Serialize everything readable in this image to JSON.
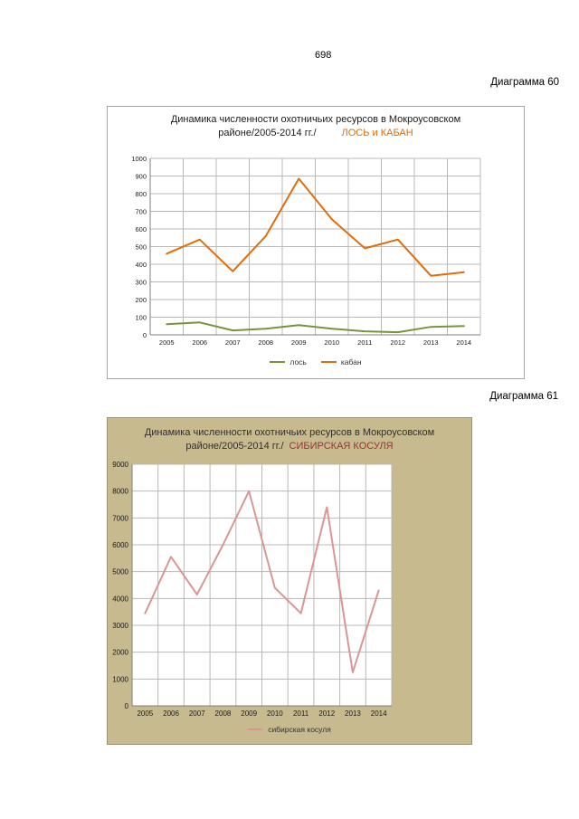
{
  "page": {
    "number": "698"
  },
  "captions": {
    "diagram60": "Диаграмма 60",
    "diagram61": "Диаграмма 61"
  },
  "chart_data": [
    {
      "type": "line",
      "title_main": "Динамика численности охотничьих ресурсов в Мокроусовском районе/2005-2014 гг./",
      "title_accent": "ЛОСЬ и КАБАН",
      "accent_color": "#e36c09",
      "categories": [
        "2005",
        "2006",
        "2007",
        "2008",
        "2009",
        "2010",
        "2011",
        "2012",
        "2013",
        "2014"
      ],
      "series": [
        {
          "name": "лось",
          "color": "#77933c",
          "values": [
            60,
            70,
            25,
            35,
            55,
            35,
            20,
            15,
            45,
            50
          ]
        },
        {
          "name": "кабан",
          "color": "#e36c09",
          "values": [
            460,
            540,
            360,
            560,
            885,
            655,
            490,
            540,
            335,
            355
          ]
        }
      ],
      "ylim": [
        0,
        1000
      ],
      "ystep": 100,
      "grid": true,
      "legend_position": "bottom",
      "background": "#ffffff",
      "plot_background": "#ffffff"
    },
    {
      "type": "line",
      "title_main": "Динамика численности  охотничьих ресурсов  в  Мокроусовском районе/2005-2014  гг./",
      "title_accent": "СИБИРСКАЯ КОСУЛЯ",
      "accent_color": "#963634",
      "categories": [
        "2005",
        "2006",
        "2007",
        "2008",
        "2009",
        "2010",
        "2011",
        "2012",
        "2013",
        "2014"
      ],
      "series": [
        {
          "name": "сибирская косуля",
          "color": "#d99694",
          "values": [
            3450,
            5550,
            4150,
            6000,
            8000,
            4400,
            3450,
            7400,
            1250,
            4300
          ]
        }
      ],
      "ylim": [
        0,
        9000
      ],
      "ystep": 1000,
      "grid": true,
      "legend_position": "bottom",
      "background": "#c6ba8e",
      "plot_background": "#ffffff"
    }
  ]
}
